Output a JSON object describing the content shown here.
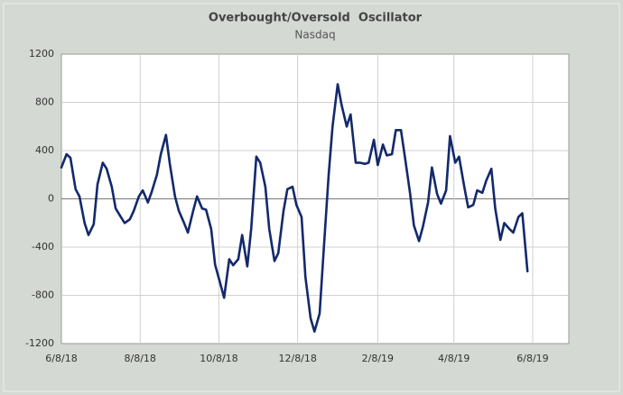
{
  "chart_data": {
    "type": "line",
    "title": "Overbought/Oversold  Oscillator",
    "subtitle": "Nasdaq",
    "x": [
      "6/8/18",
      "6/12/18",
      "6/15/18",
      "6/19/18",
      "6/22/18",
      "6/26/18",
      "6/29/18",
      "7/3/18",
      "7/6/18",
      "7/10/18",
      "7/13/18",
      "7/17/18",
      "7/20/18",
      "7/24/18",
      "7/27/18",
      "7/31/18",
      "8/3/18",
      "8/7/18",
      "8/10/18",
      "8/14/18",
      "8/17/18",
      "8/21/18",
      "8/24/18",
      "8/28/18",
      "8/31/18",
      "9/4/18",
      "9/7/18",
      "9/11/18",
      "9/14/18",
      "9/18/18",
      "9/21/18",
      "9/25/18",
      "9/28/18",
      "10/2/18",
      "10/5/18",
      "10/9/18",
      "10/12/18",
      "10/16/18",
      "10/19/18",
      "10/23/18",
      "10/26/18",
      "10/30/18",
      "11/2/18",
      "11/6/18",
      "11/9/18",
      "11/13/18",
      "11/16/18",
      "11/20/18",
      "11/23/18",
      "11/27/18",
      "11/30/18",
      "12/4/18",
      "12/7/18",
      "12/11/18",
      "12/14/18",
      "12/18/18",
      "12/21/18",
      "12/25/18",
      "12/28/18",
      "1/1/19",
      "1/4/19",
      "1/8/19",
      "1/11/19",
      "1/15/19",
      "1/18/19",
      "1/22/19",
      "1/25/19",
      "1/29/19",
      "2/1/19",
      "2/5/19",
      "2/8/19",
      "2/12/19",
      "2/15/19",
      "2/19/19",
      "2/22/19",
      "2/26/19",
      "3/1/19",
      "3/5/19",
      "3/8/19",
      "3/12/19",
      "3/15/19",
      "3/19/19",
      "3/22/19",
      "3/26/19",
      "3/29/19",
      "4/2/19",
      "4/5/19",
      "4/9/19",
      "4/12/19",
      "4/16/19",
      "4/19/19",
      "4/23/19",
      "4/26/19",
      "4/30/19",
      "5/3/19",
      "5/7/19",
      "5/10/19",
      "5/14/19",
      "5/17/19",
      "5/21/19",
      "5/24/19",
      "5/28/19",
      "5/31/19",
      "6/4/19"
    ],
    "series": [
      {
        "name": "Nasdaq",
        "color": "#13296b",
        "values": [
          260,
          370,
          340,
          80,
          20,
          -200,
          -300,
          -210,
          120,
          300,
          250,
          100,
          -80,
          -150,
          -200,
          -170,
          -100,
          20,
          70,
          -30,
          60,
          200,
          370,
          530,
          290,
          20,
          -100,
          -200,
          -280,
          -100,
          20,
          -80,
          -90,
          -250,
          -545,
          -700,
          -820,
          -500,
          -550,
          -500,
          -300,
          -560,
          -250,
          350,
          300,
          100,
          -250,
          -515,
          -450,
          -100,
          80,
          100,
          -50,
          -150,
          -650,
          -990,
          -1100,
          -950,
          -450,
          200,
          600,
          950,
          780,
          600,
          700,
          300,
          300,
          290,
          300,
          490,
          280,
          450,
          360,
          370,
          570,
          570,
          350,
          50,
          -220,
          -350,
          -230,
          -30,
          260,
          40,
          -40,
          70,
          520,
          300,
          350,
          100,
          -70,
          -50,
          70,
          50,
          150,
          250,
          -80,
          -340,
          -200,
          -250,
          -280,
          -150,
          -120,
          -600
        ]
      }
    ],
    "xlim": [
      "6/8/18",
      "7/6/19"
    ],
    "xticks": [
      "6/8/18",
      "8/8/18",
      "10/8/18",
      "12/8/18",
      "2/8/19",
      "4/8/19",
      "6/8/19"
    ],
    "ylim": [
      -1200,
      1200
    ],
    "yticks": [
      -1200,
      -800,
      -400,
      0,
      400,
      800,
      1200
    ],
    "grid": true
  }
}
